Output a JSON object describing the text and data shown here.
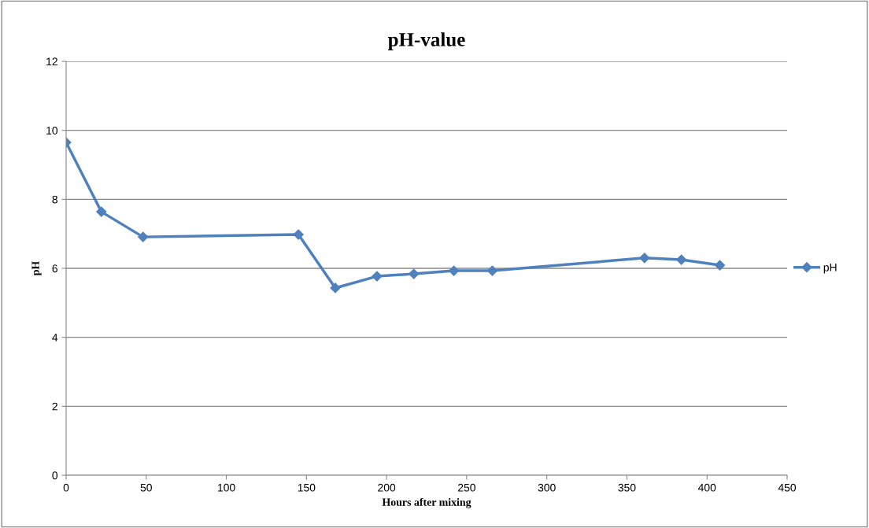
{
  "chart_data": {
    "type": "line",
    "title": "pH-value",
    "xlabel": "Hours after mixing",
    "ylabel": "pH",
    "xlim": [
      0,
      450
    ],
    "xticks": [
      0,
      50,
      100,
      150,
      200,
      250,
      300,
      350,
      400,
      450
    ],
    "ylim": [
      0,
      12
    ],
    "yticks": [
      0,
      2,
      4,
      6,
      8,
      10,
      12
    ],
    "grid": "y",
    "legend": "right",
    "marker": "diamond",
    "line_style": "solid",
    "series": [
      {
        "name": "pH",
        "color": "#4f81bd",
        "x": [
          0,
          22,
          48,
          145,
          168,
          194,
          217,
          242,
          266,
          361,
          384,
          408
        ],
        "values": [
          9.65,
          7.64,
          6.91,
          6.98,
          5.43,
          5.77,
          5.84,
          5.93,
          5.93,
          6.3,
          6.25,
          6.09
        ]
      }
    ]
  }
}
